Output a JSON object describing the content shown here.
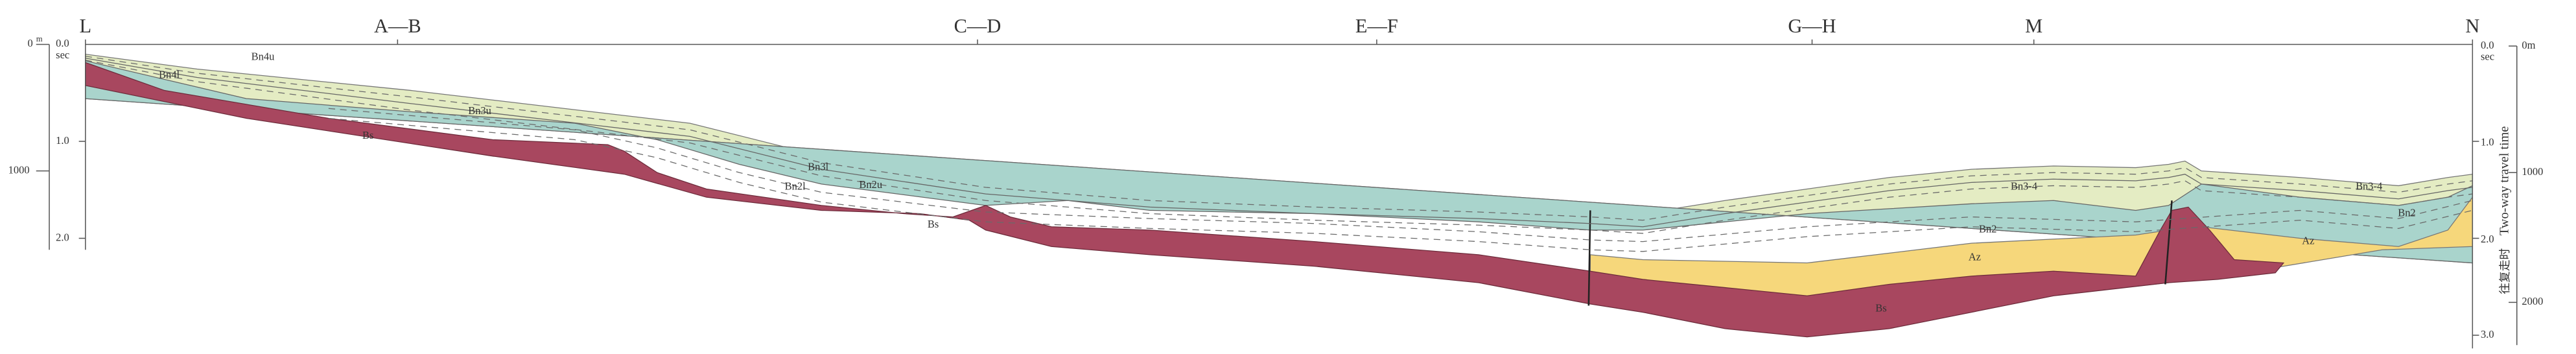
{
  "profile": {
    "points": [
      "L",
      "A—B",
      "C—D",
      "E—F",
      "G—H",
      "M",
      "N"
    ]
  },
  "left_axis": {
    "depth_zero": "0",
    "depth_unit": "m",
    "time_zero": "0.0",
    "time_unit": "sec",
    "time_ticks": [
      "1.0",
      "2.0"
    ],
    "depth_ticks": [
      "1000"
    ]
  },
  "right_axis": {
    "time_zero": "0.0",
    "time_unit": "sec",
    "time_ticks": [
      "1.0",
      "2.0",
      "3.0"
    ],
    "depth_zero": "0m",
    "depth_ticks": [
      "1000",
      "2000"
    ],
    "title_en": "Two-way travel time",
    "title_zh": "往复走时"
  },
  "layer_labels": [
    "Bn4u",
    "Bn4l",
    "Bn3u",
    "Bs",
    "Bn3l",
    "Bn2l",
    "Bn2u",
    "Bs",
    "Bn3-4",
    "Bn2",
    "Az",
    "Bs",
    "Bn3-4",
    "Bn2",
    "Az"
  ]
}
